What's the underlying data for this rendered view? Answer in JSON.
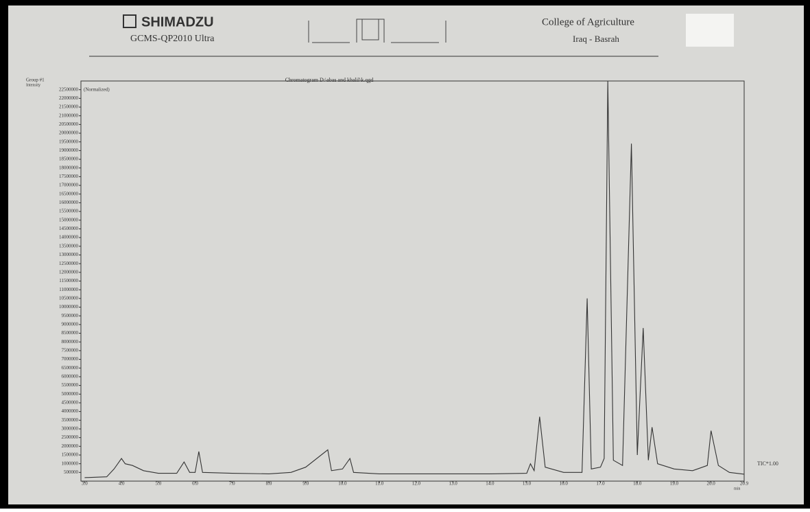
{
  "header": {
    "brand": "SHIMADZU",
    "model": "GCMS-QP2010 Ultra",
    "institution": "College of Agriculture",
    "location": "Iraq - Basrah"
  },
  "chart_data": {
    "type": "line",
    "title": "Chromatogram D:\\abas and khalil\\k.qgd",
    "group_label": "Group #1",
    "y_label": "Intensity",
    "y_note": "(Normalized)",
    "series_label": "TIC*1.00",
    "x_label": "min",
    "color": "#333333",
    "xlim": [
      2.9,
      20.9
    ],
    "ylim": [
      0,
      23000000
    ],
    "xticks": [
      {
        "value": 3,
        "label": "3.0"
      },
      {
        "value": 4,
        "label": "4.0"
      },
      {
        "value": 5,
        "label": "5.0"
      },
      {
        "value": 6,
        "label": "6.0"
      },
      {
        "value": 7,
        "label": "7.0"
      },
      {
        "value": 8,
        "label": "8.0"
      },
      {
        "value": 9,
        "label": "9.0"
      },
      {
        "value": 10,
        "label": "10.0"
      },
      {
        "value": 11,
        "label": "11.0"
      },
      {
        "value": 12,
        "label": "12.0"
      },
      {
        "value": 13,
        "label": "13.0"
      },
      {
        "value": 14,
        "label": "14.0"
      },
      {
        "value": 15,
        "label": "15.0"
      },
      {
        "value": 16,
        "label": "16.0"
      },
      {
        "value": 17,
        "label": "17.0"
      },
      {
        "value": 18,
        "label": "18.0"
      },
      {
        "value": 19,
        "label": "19.0"
      },
      {
        "value": 20,
        "label": "20.0"
      },
      20.9
    ],
    "yticks": [
      500000,
      1000000,
      1500000,
      2000000,
      2500000,
      3000000,
      3500000,
      4000000,
      4500000,
      5000000,
      5500000,
      6000000,
      6500000,
      7000000,
      7500000,
      8000000,
      8500000,
      9000000,
      9500000,
      10000000,
      10500000,
      11000000,
      11500000,
      12000000,
      12500000,
      13000000,
      13500000,
      14000000,
      14500000,
      15000000,
      15500000,
      16000000,
      16500000,
      17000000,
      17500000,
      18000000,
      18500000,
      19000000,
      19500000,
      20000000,
      20500000,
      21000000,
      21500000,
      22000000,
      22500000
    ],
    "x": [
      3.0,
      3.6,
      3.8,
      3.9,
      4.0,
      4.1,
      4.3,
      4.6,
      5.0,
      5.5,
      5.7,
      5.85,
      6.0,
      6.1,
      6.2,
      7.0,
      8.0,
      8.6,
      9.0,
      9.6,
      9.7,
      10.0,
      10.2,
      10.3,
      11.0,
      12.0,
      13.0,
      14.0,
      15.0,
      15.1,
      15.2,
      15.35,
      15.5,
      16.0,
      16.5,
      16.64,
      16.75,
      17.0,
      17.1,
      17.2,
      17.35,
      17.6,
      17.84,
      18.0,
      18.16,
      18.3,
      18.4,
      18.55,
      19.0,
      19.5,
      19.9,
      20.0,
      20.2,
      20.5,
      20.9
    ],
    "values": [
      200000,
      250000,
      700000,
      1000000,
      1300000,
      1000000,
      900000,
      600000,
      450000,
      450000,
      1100000,
      500000,
      500000,
      1700000,
      500000,
      450000,
      420000,
      500000,
      800000,
      1800000,
      600000,
      700000,
      1300000,
      500000,
      420000,
      420000,
      420000,
      420000,
      450000,
      1000000,
      600000,
      3700000,
      800000,
      500000,
      500000,
      10500000,
      700000,
      800000,
      1300000,
      23000000,
      1200000,
      900000,
      19400000,
      1500000,
      8800000,
      1200000,
      3100000,
      1000000,
      700000,
      600000,
      900000,
      2900000,
      900000,
      500000,
      400000
    ]
  }
}
